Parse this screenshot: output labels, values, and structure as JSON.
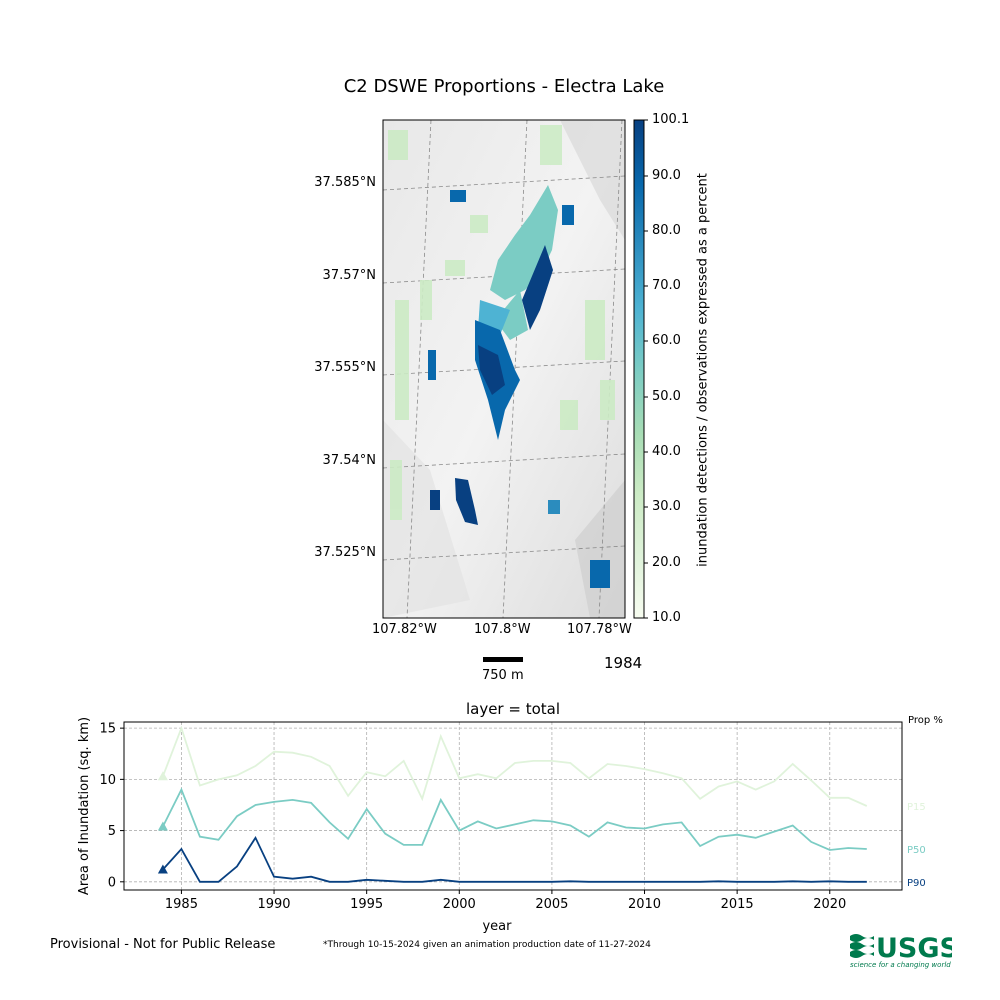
{
  "title": "C2 DSWE Proportions - Electra Lake",
  "map": {
    "lat_labels": [
      "37.585°N",
      "37.57°N",
      "37.555°N",
      "37.54°N",
      "37.525°N"
    ],
    "lon_labels": [
      "107.82°W",
      "107.8°W",
      "107.78°W"
    ],
    "colorbar": {
      "label": "inundation detections / observations expressed as a percent",
      "ticks": [
        "100.1",
        "90.0",
        "80.0",
        "70.0",
        "60.0",
        "50.0",
        "40.0",
        "30.0",
        "20.0",
        "10.0"
      ],
      "range": [
        10.0,
        100.1
      ],
      "colors": [
        "#f7fcf0",
        "#e0f3db",
        "#ccebc5",
        "#a8ddb5",
        "#7bccc4",
        "#4eb3d3",
        "#2b8cbe",
        "#0868ac",
        "#084081"
      ]
    },
    "scalebar_label": "750 m",
    "year": "1984"
  },
  "subplot_title": "layer = total",
  "chart_data": {
    "type": "line",
    "title": "layer = total",
    "xlabel": "year",
    "ylabel": "Area of Inundation (sq. km)",
    "x": [
      1984,
      1985,
      1986,
      1987,
      1988,
      1989,
      1990,
      1991,
      1992,
      1993,
      1994,
      1995,
      1996,
      1997,
      1998,
      1999,
      2000,
      2001,
      2002,
      2003,
      2004,
      2005,
      2006,
      2007,
      2008,
      2009,
      2010,
      2011,
      2012,
      2013,
      2014,
      2015,
      2016,
      2017,
      2018,
      2019,
      2020,
      2021,
      2022
    ],
    "xlim": [
      1981.9,
      1984.0
    ],
    "xrange": [
      1981.9,
      2023.9
    ],
    "xticks": [
      1985,
      1990,
      1995,
      2000,
      2005,
      2010,
      2015,
      2020
    ],
    "ylim": [
      -0.8,
      15.6
    ],
    "yticks": [
      0,
      5,
      10,
      15
    ],
    "grid": true,
    "legend_title": "Prop %",
    "series": [
      {
        "name": "P15",
        "color": "#e0f3db",
        "values": [
          10.3,
          15.0,
          9.4,
          10.0,
          10.4,
          11.3,
          12.7,
          12.6,
          12.2,
          11.3,
          8.4,
          10.7,
          10.3,
          11.8,
          8.1,
          14.2,
          10.1,
          10.5,
          10.1,
          11.6,
          11.8,
          11.8,
          11.6,
          10.1,
          11.5,
          11.3,
          11.0,
          10.6,
          10.1,
          8.1,
          9.3,
          9.8,
          9.0,
          9.8,
          11.5,
          9.9,
          8.2,
          8.2,
          7.4
        ]
      },
      {
        "name": "P50",
        "color": "#7bccc4",
        "values": [
          5.4,
          9.0,
          4.4,
          4.1,
          6.4,
          7.5,
          7.8,
          8.0,
          7.7,
          5.8,
          4.2,
          7.1,
          4.7,
          3.6,
          3.6,
          8.0,
          5.0,
          5.9,
          5.2,
          5.6,
          6.0,
          5.9,
          5.5,
          4.4,
          5.8,
          5.3,
          5.2,
          5.6,
          5.8,
          3.5,
          4.4,
          4.6,
          4.3,
          4.9,
          5.5,
          3.9,
          3.1,
          3.3,
          3.2
        ]
      },
      {
        "name": "P90",
        "color": "#084081",
        "values": [
          1.2,
          3.2,
          0.0,
          0.0,
          1.5,
          4.3,
          0.5,
          0.3,
          0.5,
          0.0,
          0.0,
          0.2,
          0.1,
          0.0,
          0.0,
          0.2,
          0.0,
          0.0,
          0.0,
          0.0,
          0.0,
          0.0,
          0.05,
          0.0,
          0.0,
          0.0,
          0.0,
          0.0,
          0.0,
          0.0,
          0.05,
          0.0,
          0.0,
          0.0,
          0.05,
          0.0,
          0.05,
          0.0,
          0.0
        ]
      }
    ],
    "marker_year": 1984
  },
  "footer": {
    "provisional": "Provisional - Not for Public Release",
    "through": "*Through 10-15-2024 given an animation production date of 11-27-2024",
    "logo_text": "USGS",
    "logo_tagline": "science for a changing world"
  }
}
